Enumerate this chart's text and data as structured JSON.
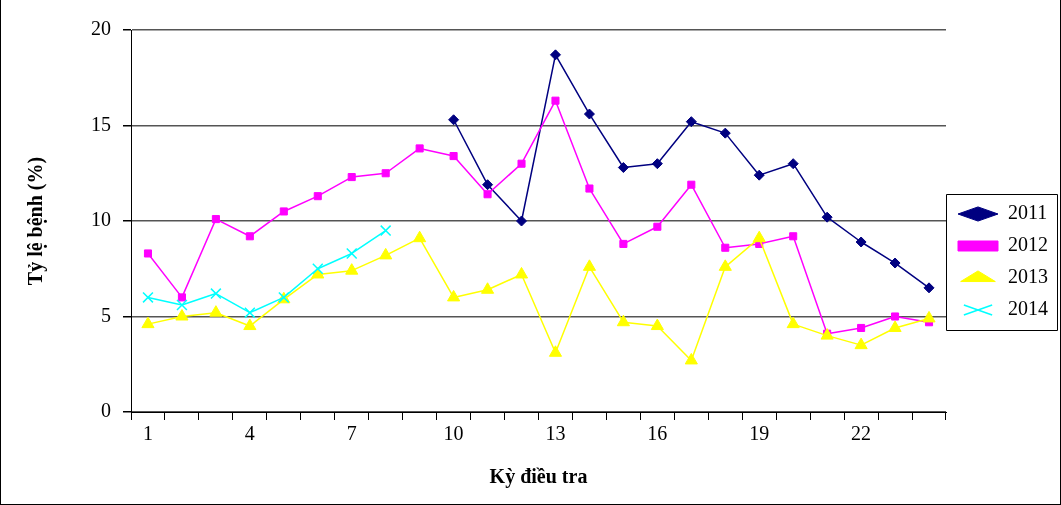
{
  "chart_data": {
    "type": "line",
    "xlabel": "Kỳ điều tra",
    "ylabel": "Tỷ lệ bệnh (%)",
    "categories": [
      "1",
      null,
      null,
      "4",
      null,
      null,
      "7",
      null,
      null,
      "10",
      null,
      null,
      "13",
      null,
      null,
      "16",
      null,
      null,
      "19",
      null,
      null,
      "22",
      null,
      null
    ],
    "series": [
      {
        "name": "2011",
        "color": "#000080",
        "marker": "diamond",
        "values": [
          null,
          null,
          null,
          null,
          null,
          null,
          null,
          null,
          null,
          15.3,
          11.9,
          10.0,
          18.7,
          15.6,
          12.8,
          13.0,
          15.2,
          14.6,
          12.4,
          13.0,
          10.2,
          8.9,
          7.8,
          6.5
        ]
      },
      {
        "name": "2012",
        "color": "#ff00ff",
        "marker": "square",
        "values": [
          8.3,
          6.0,
          10.1,
          9.2,
          10.5,
          11.3,
          12.3,
          12.5,
          13.8,
          13.4,
          11.4,
          13.0,
          16.3,
          11.7,
          8.8,
          9.7,
          11.9,
          8.6,
          8.8,
          9.2,
          4.1,
          4.4,
          5.0,
          4.7
        ]
      },
      {
        "name": "2013",
        "color": "#ffff00",
        "marker": "triangle",
        "values": [
          4.6,
          5.0,
          5.2,
          4.5,
          5.9,
          7.2,
          7.4,
          8.2,
          9.1,
          6.0,
          6.4,
          7.2,
          3.1,
          7.6,
          4.7,
          4.5,
          2.7,
          7.6,
          9.1,
          4.6,
          4.0,
          3.5,
          4.4,
          4.9
        ]
      },
      {
        "name": "2014",
        "color": "#00ffff",
        "marker": "cross",
        "values": [
          6.0,
          5.6,
          6.2,
          5.2,
          6.0,
          7.5,
          8.3,
          9.5,
          null,
          null,
          null,
          null,
          null,
          null,
          null,
          null,
          null,
          null,
          null,
          null,
          null,
          null,
          null,
          null
        ]
      }
    ],
    "ylim": [
      0,
      20
    ],
    "yticks": [
      0,
      5,
      10,
      15,
      20
    ],
    "grid": "y",
    "legend": "right",
    "line_style": "solid"
  }
}
